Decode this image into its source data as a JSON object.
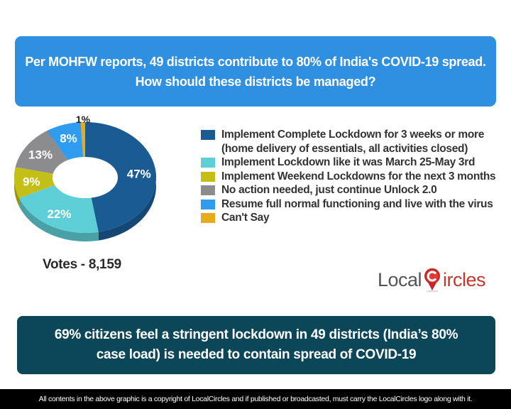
{
  "header": {
    "line1": "Per MOHFW reports, 49 districts contribute to 80% of India's COVID-19 spread.",
    "line2": "How should these districts be managed?"
  },
  "chart_data": {
    "type": "pie",
    "variant": "donut-3d",
    "title": "Per MOHFW reports, 49 districts contribute to 80% of India's COVID-19 spread. How should these districts be managed?",
    "categories": [
      "Implement Complete Lockdown for 3 weeks or more (home delivery of essentials, all activities closed)",
      "Implement Lockdown like it was March 25-May 3rd",
      "Implement Weekend Lockdowns for the next 3 months",
      "No action needed, just continue Unlock 2.0",
      "Resume full normal functioning and live with the virus",
      "Can't Say"
    ],
    "values": [
      47,
      22,
      9,
      13,
      8,
      1
    ],
    "labels": [
      "47%",
      "22%",
      "9%",
      "13%",
      "8%",
      "1%"
    ],
    "colors": [
      "#1a5b94",
      "#5ecfd6",
      "#c4bf16",
      "#8c8c8f",
      "#2f9cf0",
      "#e8ab1b"
    ],
    "legend_position": "right",
    "annotation": "Votes - 8,159"
  },
  "legend": {
    "items": [
      {
        "line1": "Implement Complete Lockdown for 3 weeks or more",
        "line2": "(home delivery of essentials, all activities closed)",
        "color": "#1a5b94"
      },
      {
        "line1": "Implement Lockdown like it was March 25-May 3rd",
        "color": "#5ecfd6"
      },
      {
        "line1": "Implement Weekend Lockdowns for the next 3 months",
        "color": "#c4bf16"
      },
      {
        "line1": "No action needed, just continue Unlock 2.0",
        "color": "#8c8c8f"
      },
      {
        "line1": "Resume full normal functioning and live with the virus",
        "color": "#2f9cf0"
      },
      {
        "line1": "Can't Say",
        "color": "#e8ab1b"
      }
    ]
  },
  "votes": "Votes - 8,159",
  "logo": {
    "part1": "Local",
    "part2": "ircles"
  },
  "summary": {
    "line1": "69% citizens feel a stringent lockdown in 49 districts (India’s 80%",
    "line2": "case load) is needed to contain spread of COVID-19"
  },
  "footer": "All contents in the above graphic is a copyright of LocalCircles and if published or broadcasted, must carry the LocalCircles logo along with it."
}
